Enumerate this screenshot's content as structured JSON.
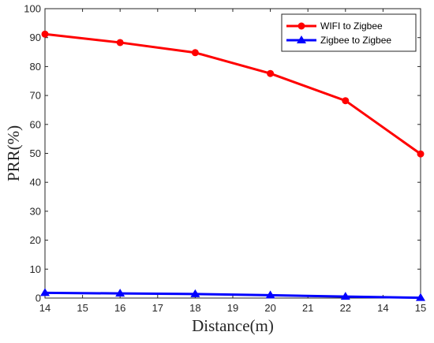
{
  "chart_data": {
    "type": "line",
    "xlabel": "Distance(m)",
    "ylabel": "PRR(%)",
    "x_tick_labels": [
      "14",
      "15",
      "16",
      "17",
      "18",
      "19",
      "20",
      "21",
      "22",
      "14",
      "15"
    ],
    "y_ticks": [
      0,
      10,
      20,
      30,
      40,
      50,
      60,
      70,
      80,
      90,
      100
    ],
    "ylim": [
      0,
      100
    ],
    "grid": false,
    "legend_position": "top-right",
    "categories": [
      "14",
      "16",
      "18",
      "20",
      "22",
      "15"
    ],
    "series": [
      {
        "name": "WIFI to Zigbee",
        "values": [
          91.2,
          88.3,
          84.8,
          77.6,
          68.2,
          49.8
        ],
        "color": "#ff0000",
        "marker": "circle"
      },
      {
        "name": "Zigbee to Zigbee",
        "values": [
          1.8,
          1.6,
          1.4,
          1.0,
          0.5,
          0.1
        ],
        "color": "#0000ff",
        "marker": "triangle"
      }
    ]
  }
}
